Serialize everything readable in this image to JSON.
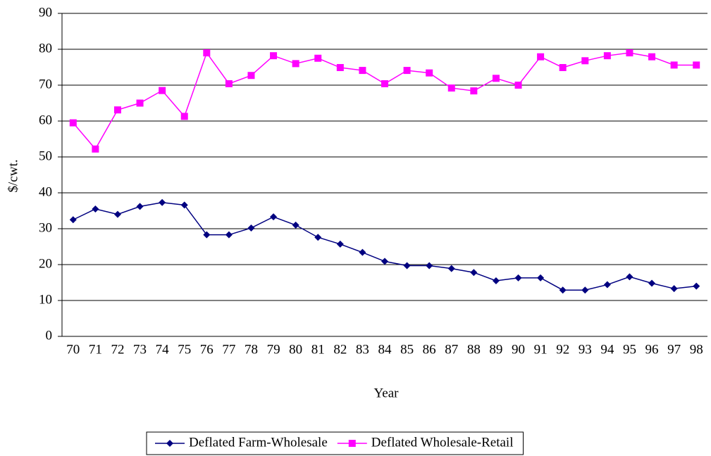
{
  "chart_data": {
    "type": "line",
    "x_label": "Year",
    "y_label": "$/cwt.",
    "categories": [
      "70",
      "71",
      "72",
      "73",
      "74",
      "75",
      "76",
      "77",
      "78",
      "79",
      "80",
      "81",
      "82",
      "83",
      "84",
      "85",
      "86",
      "87",
      "88",
      "89",
      "90",
      "91",
      "92",
      "93",
      "94",
      "95",
      "96",
      "97",
      "98"
    ],
    "series": [
      {
        "name": "Deflated Farm-Wholesale",
        "color": "#000080",
        "marker": "diamond",
        "values": [
          32.5,
          35.5,
          34,
          36.2,
          37.3,
          36.6,
          28.3,
          28.3,
          30.2,
          33.3,
          31,
          27.6,
          25.7,
          23.4,
          20.9,
          19.7,
          19.7,
          18.9,
          17.8,
          15.5,
          16.3,
          16.3,
          12.9,
          12.9,
          14.4,
          16.6,
          14.8,
          13.3,
          14
        ]
      },
      {
        "name": "Deflated Wholesale-Retail",
        "color": "#ff00ff",
        "marker": "square",
        "values": [
          59.5,
          52.2,
          63.1,
          65,
          68.5,
          61.3,
          79,
          70.4,
          72.7,
          78.2,
          76,
          77.5,
          74.9,
          74.1,
          70.4,
          74.1,
          73.4,
          69.2,
          68.4,
          71.9,
          70,
          77.9,
          74.9,
          76.8,
          78.2,
          79,
          77.9,
          75.6,
          75.6
        ]
      }
    ],
    "ylim": [
      0,
      90
    ],
    "yticks": [
      0,
      10,
      20,
      30,
      40,
      50,
      60,
      70,
      80,
      90
    ],
    "grid": true,
    "legend": "bottom"
  }
}
